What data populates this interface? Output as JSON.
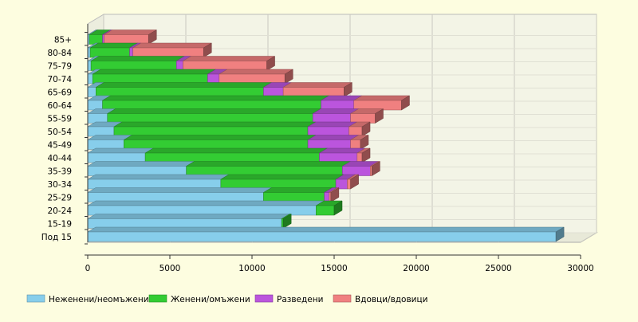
{
  "chart_data": {
    "type": "bar",
    "orientation": "horizontal",
    "stacked": true,
    "style": "3d",
    "title": "",
    "xlabel": "",
    "ylabel": "",
    "xlim": [
      0,
      30000
    ],
    "x_ticks": [
      "0",
      "5000",
      "10000",
      "15000",
      "20000",
      "25000",
      "30000"
    ],
    "grid": true,
    "legend_position": "bottom-left",
    "categories": [
      "Под 15",
      "15-19",
      "20-24",
      "25-29",
      "30-34",
      "35-39",
      "40-44",
      "45-49",
      "50-54",
      "55-59",
      "60-64",
      "65-69",
      "70-74",
      "75-79",
      "80-84",
      "85+"
    ],
    "series": [
      {
        "name": "Неженени/неомъжени",
        "color": "#87ceeb",
        "values": [
          28500,
          11800,
          13900,
          10700,
          8100,
          6000,
          3500,
          2200,
          1600,
          1200,
          900,
          500,
          300,
          200,
          150,
          100
        ]
      },
      {
        "name": "Женени/омъжени",
        "color": "#33cc33",
        "values": [
          0,
          100,
          1100,
          3700,
          7000,
          9500,
          10600,
          11200,
          11800,
          12500,
          13300,
          10200,
          7000,
          5200,
          2400,
          800
        ]
      },
      {
        "name": "Разведени",
        "color": "#bb55dd",
        "values": [
          0,
          0,
          0,
          300,
          700,
          1700,
          2300,
          2600,
          2500,
          2300,
          2000,
          1200,
          700,
          400,
          200,
          100
        ]
      },
      {
        "name": "Вдовци/вдовици",
        "color": "#f08080",
        "values": [
          0,
          0,
          0,
          100,
          200,
          100,
          300,
          600,
          800,
          1500,
          2900,
          3700,
          4000,
          5100,
          4300,
          2700
        ]
      }
    ]
  }
}
